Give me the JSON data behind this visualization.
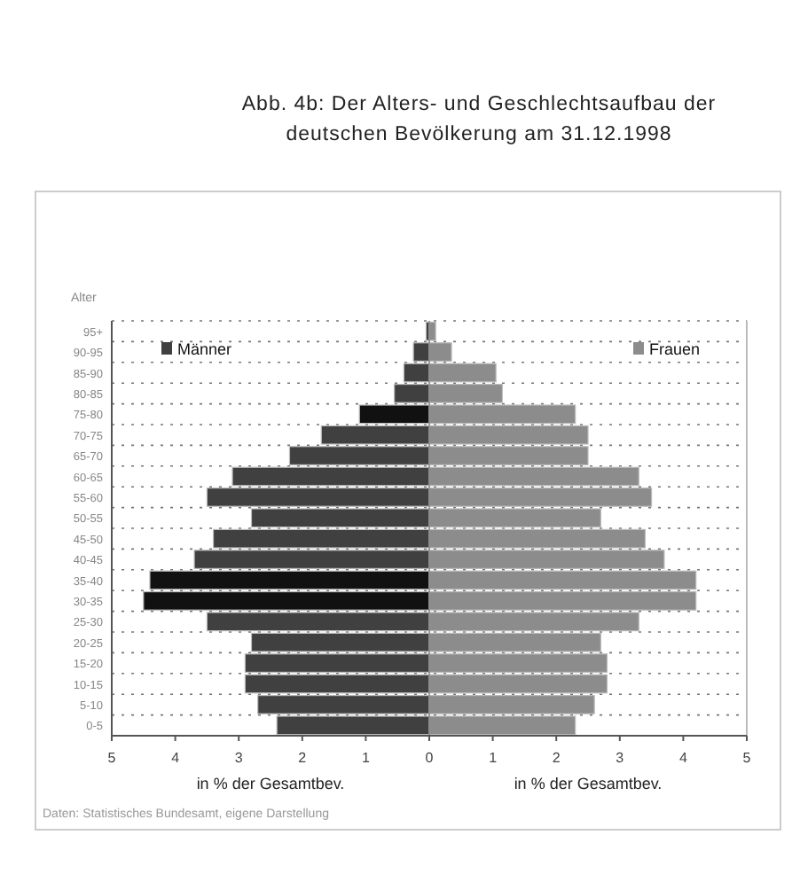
{
  "chart_data": {
    "type": "bar",
    "orientation": "horizontal",
    "title": "Abb. 4b: Der Alters- und Geschlechtsaufbau der deutschen Bevölkerung am 31.12.1998",
    "ylabel": "Alter",
    "xlabel": "in % der Gesamtbev.",
    "categories": [
      "95+",
      "90-95",
      "85-90",
      "80-85",
      "75-80",
      "70-75",
      "65-70",
      "60-65",
      "55-60",
      "50-55",
      "45-50",
      "40-45",
      "35-40",
      "30-35",
      "25-30",
      "20-25",
      "15-20",
      "10-15",
      "5-10",
      "0-5"
    ],
    "series": [
      {
        "name": "Männer",
        "color": "#404040",
        "colors": [
          "#404040",
          "#404040",
          "#404040",
          "#404040",
          "#111111",
          "#404040",
          "#404040",
          "#404040",
          "#404040",
          "#404040",
          "#404040",
          "#404040",
          "#111111",
          "#111111",
          "#404040",
          "#404040",
          "#404040",
          "#404040",
          "#404040",
          "#404040"
        ],
        "values": [
          -0.05,
          -0.25,
          -0.4,
          -0.55,
          -1.1,
          -1.7,
          -2.2,
          -3.1,
          -3.5,
          -2.8,
          -3.4,
          -3.7,
          -4.4,
          -4.5,
          -3.5,
          -2.8,
          -2.9,
          -2.9,
          -2.7,
          -2.4
        ]
      },
      {
        "name": "Frauen",
        "color": "#8c8c8c",
        "values": [
          0.1,
          0.35,
          1.05,
          1.15,
          2.3,
          2.5,
          2.5,
          3.3,
          3.5,
          2.7,
          3.4,
          3.7,
          4.2,
          4.2,
          3.3,
          2.7,
          2.8,
          2.8,
          2.6,
          2.3
        ]
      }
    ],
    "xlim": [
      -5,
      5
    ],
    "xticks": [
      {
        "value": -5,
        "label": "5"
      },
      {
        "value": -4,
        "label": "4"
      },
      {
        "value": -3,
        "label": "3"
      },
      {
        "value": -2,
        "label": "2"
      },
      {
        "value": -1,
        "label": "1"
      },
      0,
      1,
      2,
      3,
      4,
      5
    ],
    "grid": "y",
    "legend": "top",
    "stacked": true,
    "annotations": [
      "Daten: Statistisches Bundesamt, eigene Darstellung"
    ]
  }
}
